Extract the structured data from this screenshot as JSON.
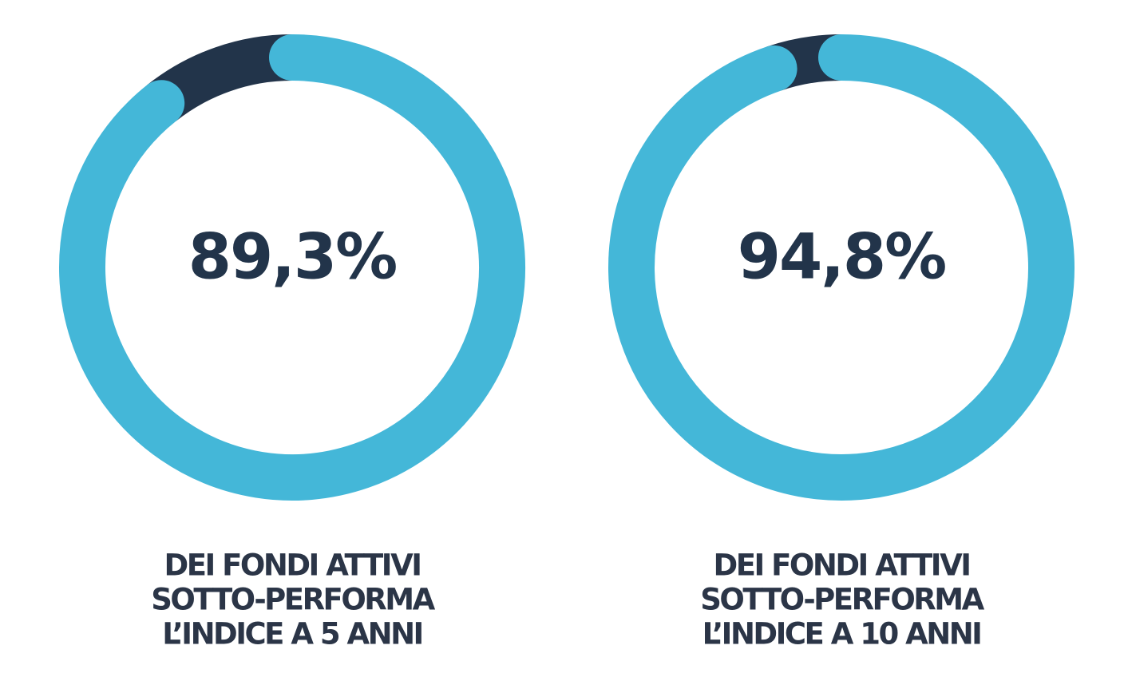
{
  "chart_data": [
    {
      "type": "donut",
      "values": [
        89.3,
        10.7
      ],
      "value_labels": [
        "89,3%",
        null
      ],
      "colors": [
        "#44b7d8",
        "#22344a"
      ],
      "caption": [
        "DEI FONDI ATTIVI",
        "SOTTO-PERFORMA",
        "L’INDICE A 5 ANNI"
      ]
    },
    {
      "type": "donut",
      "values": [
        94.8,
        5.2
      ],
      "value_labels": [
        "94,8%",
        null
      ],
      "colors": [
        "#44b7d8",
        "#22344a"
      ],
      "caption": [
        "DEI FONDI ATTIVI",
        "SOTTO-PERFORMA",
        "L’INDICE A 10 ANNI"
      ]
    }
  ]
}
